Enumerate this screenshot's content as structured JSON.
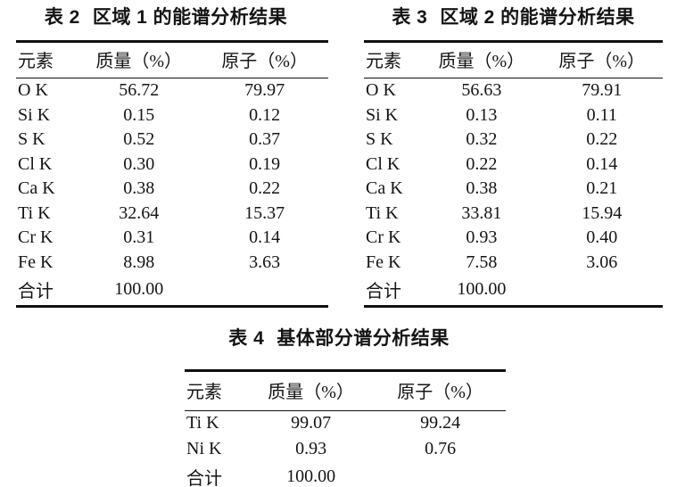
{
  "colors": {
    "background": "#ffffff",
    "text": "#141414",
    "rule": "#101010"
  },
  "tables": [
    {
      "caption_label": "表 2",
      "caption_title": "区域 1 的能谱分析结果",
      "headers": [
        "元素",
        "质量（%）",
        "原子（%）"
      ],
      "rows": [
        [
          "O K",
          "56.72",
          "79.97"
        ],
        [
          "Si K",
          "0.15",
          "0.12"
        ],
        [
          "S K",
          "0.52",
          "0.37"
        ],
        [
          "Cl K",
          "0.30",
          "0.19"
        ],
        [
          "Ca K",
          "0.38",
          "0.22"
        ],
        [
          "Ti K",
          "32.64",
          "15.37"
        ],
        [
          "Cr K",
          "0.31",
          "0.14"
        ],
        [
          "Fe K",
          "8.98",
          "3.63"
        ],
        [
          "合计",
          "100.00",
          ""
        ]
      ]
    },
    {
      "caption_label": "表 3",
      "caption_title": "区域 2 的能谱分析结果",
      "headers": [
        "元素",
        "质量（%）",
        "原子（%）"
      ],
      "rows": [
        [
          "O K",
          "56.63",
          "79.91"
        ],
        [
          "Si K",
          "0.13",
          "0.11"
        ],
        [
          "S K",
          "0.32",
          "0.22"
        ],
        [
          "Cl K",
          "0.22",
          "0.14"
        ],
        [
          "Ca K",
          "0.38",
          "0.21"
        ],
        [
          "Ti K",
          "33.81",
          "15.94"
        ],
        [
          "Cr K",
          "0.93",
          "0.40"
        ],
        [
          "Fe K",
          "7.58",
          "3.06"
        ],
        [
          "合计",
          "100.00",
          ""
        ]
      ]
    },
    {
      "caption_label": "表 4",
      "caption_title": "基体部分谱分析结果",
      "headers": [
        "元素",
        "质量（%）",
        "原子（%）"
      ],
      "rows": [
        [
          "Ti K",
          "99.07",
          "99.24"
        ],
        [
          "Ni K",
          "0.93",
          "0.76"
        ],
        [
          "合计",
          "100.00",
          ""
        ]
      ]
    }
  ]
}
